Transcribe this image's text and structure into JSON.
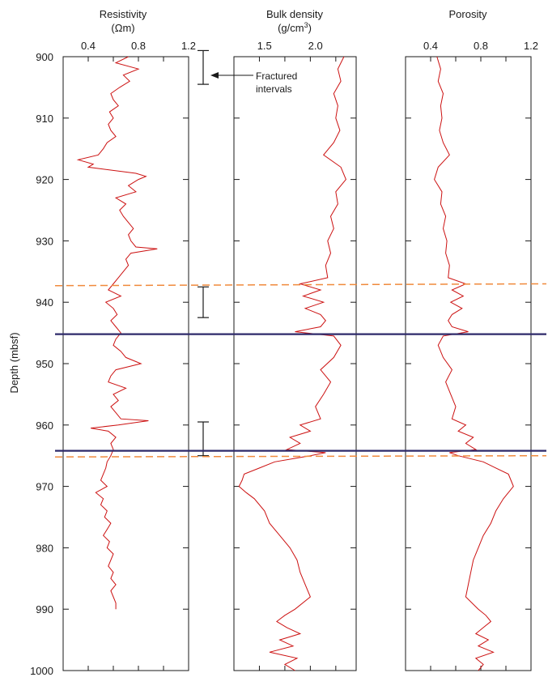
{
  "chart_data": {
    "type": "line",
    "ylabel": "Depth (mbsf)",
    "y_ticks": [
      "900",
      "910",
      "920",
      "930",
      "940",
      "950",
      "960",
      "970",
      "980",
      "990",
      "1000"
    ],
    "ylim": [
      900,
      1000
    ],
    "y_inverted": true,
    "panels": [
      {
        "title": "Resistivity",
        "units_text": "(Ωm)",
        "xlim": [
          0.2,
          1.2
        ],
        "x_ticks": [
          "0.4",
          "0.8",
          "1.2"
        ],
        "series": [
          {
            "color": "#cc1111",
            "depth": [
              900,
              901,
              902,
              903,
              904,
              905,
              906,
              907,
              908,
              909,
              910,
              911,
              912,
              913,
              914,
              915,
              916,
              916.8,
              917.5,
              918,
              919,
              919.5,
              920,
              921,
              922,
              923,
              924,
              925,
              926,
              927,
              928,
              929,
              930,
              931,
              931.3,
              932,
              933,
              934,
              935,
              936,
              937,
              938,
              939,
              940,
              941,
              942,
              943,
              944,
              945,
              946,
              947,
              948,
              949,
              950,
              951,
              952,
              953,
              954,
              955,
              956,
              957,
              958,
              959,
              959.3,
              960,
              960.5,
              961,
              962,
              963,
              964,
              965,
              966,
              967,
              968,
              969,
              970,
              971,
              972,
              973,
              974,
              975,
              976,
              977,
              978,
              979,
              980,
              981,
              982,
              983,
              984,
              985,
              986,
              987,
              988,
              989,
              990
            ],
            "values": [
              0.72,
              0.62,
              0.8,
              0.68,
              0.73,
              0.65,
              0.58,
              0.6,
              0.64,
              0.57,
              0.6,
              0.56,
              0.58,
              0.62,
              0.55,
              0.52,
              0.48,
              0.32,
              0.44,
              0.4,
              0.78,
              0.86,
              0.8,
              0.72,
              0.78,
              0.62,
              0.7,
              0.65,
              0.68,
              0.72,
              0.76,
              0.72,
              0.74,
              0.78,
              0.95,
              0.74,
              0.7,
              0.72,
              0.68,
              0.64,
              0.6,
              0.56,
              0.66,
              0.54,
              0.6,
              0.63,
              0.58,
              0.62,
              0.66,
              0.62,
              0.6,
              0.66,
              0.7,
              0.82,
              0.62,
              0.58,
              0.56,
              0.7,
              0.6,
              0.64,
              0.58,
              0.62,
              0.66,
              0.88,
              0.64,
              0.42,
              0.56,
              0.62,
              0.58,
              0.6,
              0.58,
              0.55,
              0.54,
              0.52,
              0.5,
              0.55,
              0.46,
              0.52,
              0.5,
              0.55,
              0.53,
              0.58,
              0.55,
              0.52,
              0.57,
              0.55,
              0.6,
              0.58,
              0.56,
              0.6,
              0.58,
              0.62,
              0.58,
              0.6,
              0.62,
              0.62
            ]
          }
        ]
      },
      {
        "title": "Bulk density",
        "units_text": "(g/cm",
        "units_sup": "3",
        "units_tail": ")",
        "xlim": [
          1.2,
          2.4
        ],
        "x_ticks": [
          "1.5",
          "2.0"
        ],
        "series": [
          {
            "color": "#cc1111",
            "depth": [
              900,
              902,
              904,
              906,
              908,
              910,
              912,
              914,
              916,
              918,
              920,
              922,
              924,
              926,
              928,
              930,
              932,
              934,
              936,
              937,
              938,
              939,
              940,
              941,
              942,
              943,
              944,
              944.8,
              945.5,
              947,
              949,
              951,
              953,
              955,
              957,
              959,
              960,
              961,
              962,
              963,
              964,
              964.5,
              965,
              966,
              967,
              968,
              969,
              970,
              971,
              972,
              974,
              976,
              978,
              980,
              982,
              984,
              986,
              988,
              990,
              991,
              992,
              993,
              994,
              995,
              996,
              997,
              998,
              999,
              1000
            ],
            "values": [
              2.28,
              2.22,
              2.25,
              2.18,
              2.22,
              2.2,
              2.24,
              2.18,
              2.08,
              2.25,
              2.3,
              2.2,
              2.22,
              2.15,
              2.18,
              2.12,
              2.15,
              2.1,
              2.12,
              1.85,
              2.05,
              1.88,
              2.08,
              1.9,
              2.05,
              2.1,
              2.05,
              1.8,
              2.18,
              2.25,
              2.18,
              2.05,
              2.15,
              2.08,
              2.0,
              2.05,
              1.85,
              1.95,
              1.75,
              1.85,
              1.72,
              2.1,
              1.95,
              1.6,
              1.45,
              1.3,
              1.28,
              1.25,
              1.32,
              1.4,
              1.5,
              1.55,
              1.65,
              1.75,
              1.82,
              1.85,
              1.9,
              1.95,
              1.8,
              1.7,
              1.62,
              1.72,
              1.85,
              1.65,
              1.78,
              1.55,
              1.82,
              1.7,
              1.8
            ]
          }
        ]
      },
      {
        "title": "Porosity",
        "units_text": "",
        "xlim": [
          0.2,
          1.2
        ],
        "x_ticks": [
          "0.4",
          "0.8",
          "1.2"
        ],
        "series": [
          {
            "color": "#cc1111",
            "depth": [
              900,
              902,
              904,
              906,
              908,
              910,
              912,
              914,
              916,
              918,
              920,
              922,
              924,
              926,
              928,
              930,
              932,
              934,
              936,
              937,
              938,
              939,
              940,
              941,
              942,
              943,
              944,
              944.8,
              945.5,
              947,
              949,
              951,
              953,
              955,
              957,
              959,
              960,
              961,
              962,
              963,
              964,
              964.5,
              965,
              966,
              967,
              968,
              969,
              970,
              971,
              972,
              974,
              976,
              978,
              980,
              982,
              984,
              986,
              988,
              990,
              991,
              992,
              993,
              994,
              995,
              996,
              997,
              998,
              999,
              1000
            ],
            "values": [
              0.45,
              0.48,
              0.46,
              0.5,
              0.48,
              0.49,
              0.47,
              0.5,
              0.55,
              0.46,
              0.43,
              0.49,
              0.48,
              0.52,
              0.5,
              0.53,
              0.52,
              0.55,
              0.54,
              0.68,
              0.57,
              0.66,
              0.56,
              0.65,
              0.57,
              0.54,
              0.57,
              0.7,
              0.5,
              0.46,
              0.5,
              0.57,
              0.52,
              0.56,
              0.6,
              0.57,
              0.68,
              0.62,
              0.74,
              0.68,
              0.76,
              0.55,
              0.62,
              0.82,
              0.92,
              1.02,
              1.04,
              1.06,
              1.02,
              0.98,
              0.92,
              0.88,
              0.82,
              0.78,
              0.74,
              0.72,
              0.7,
              0.68,
              0.78,
              0.84,
              0.88,
              0.82,
              0.76,
              0.86,
              0.78,
              0.9,
              0.76,
              0.82,
              0.78
            ]
          }
        ]
      }
    ],
    "fractured_intervals": [
      [
        899,
        904.5
      ],
      [
        937.5,
        942.5
      ],
      [
        959.5,
        965
      ]
    ],
    "fractured_label": [
      "Fractured",
      "intervals"
    ],
    "solid_boundaries": [
      945.2,
      964.2
    ],
    "dashed_boundaries": [
      {
        "left": 937.3,
        "right": 937.0
      },
      {
        "left": 965.2,
        "right": 965.0
      }
    ],
    "colors": {
      "curve": "#cc1111",
      "solid_line": "#2e2a6a",
      "dashed_line": "#f08a3c",
      "axis": "#1a1a1a"
    }
  }
}
